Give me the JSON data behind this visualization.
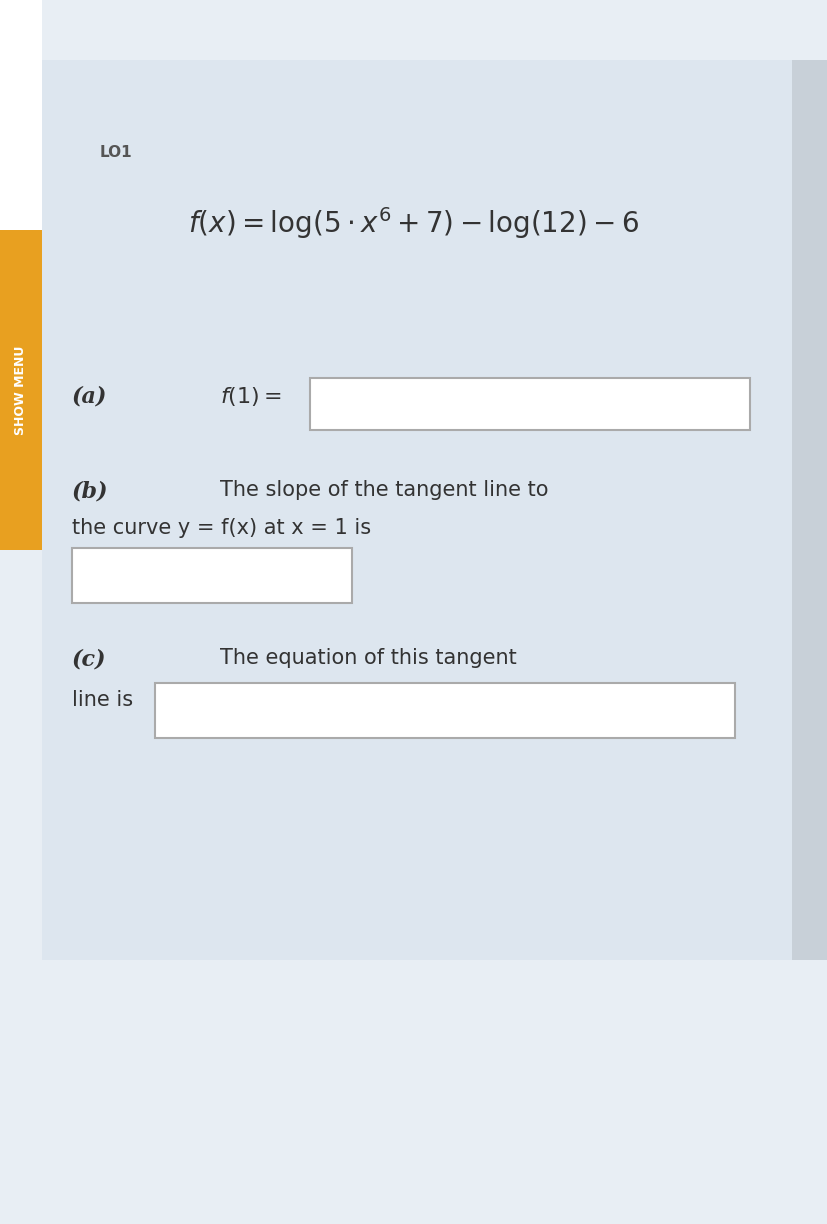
{
  "bg_color": "#e8eef4",
  "panel_color": "#dde6ef",
  "white_strip_color": "#ffffff",
  "show_menu_bg": "#e8a020",
  "show_menu_text": "SHOW MENU",
  "show_menu_text_color": "#ffffff",
  "label_text": "LO1",
  "label_color": "#555555",
  "formula": "f(x) = log(5 · x⁶ + 7) − log(12) − 6",
  "formula_color": "#333333",
  "part_a_label": "(a)",
  "part_a_text": "f(1) =",
  "part_b_label": "(b)",
  "part_b_text1": "The slope of the tangent line to",
  "part_b_text2": "the curve y = f(x) at x = 1 is",
  "part_c_label": "(c)",
  "part_c_text1": "The equation of this tangent",
  "part_c_text2": "line is",
  "text_color": "#333333",
  "box_bg": "#ffffff",
  "box_edge": "#aaaaaa"
}
